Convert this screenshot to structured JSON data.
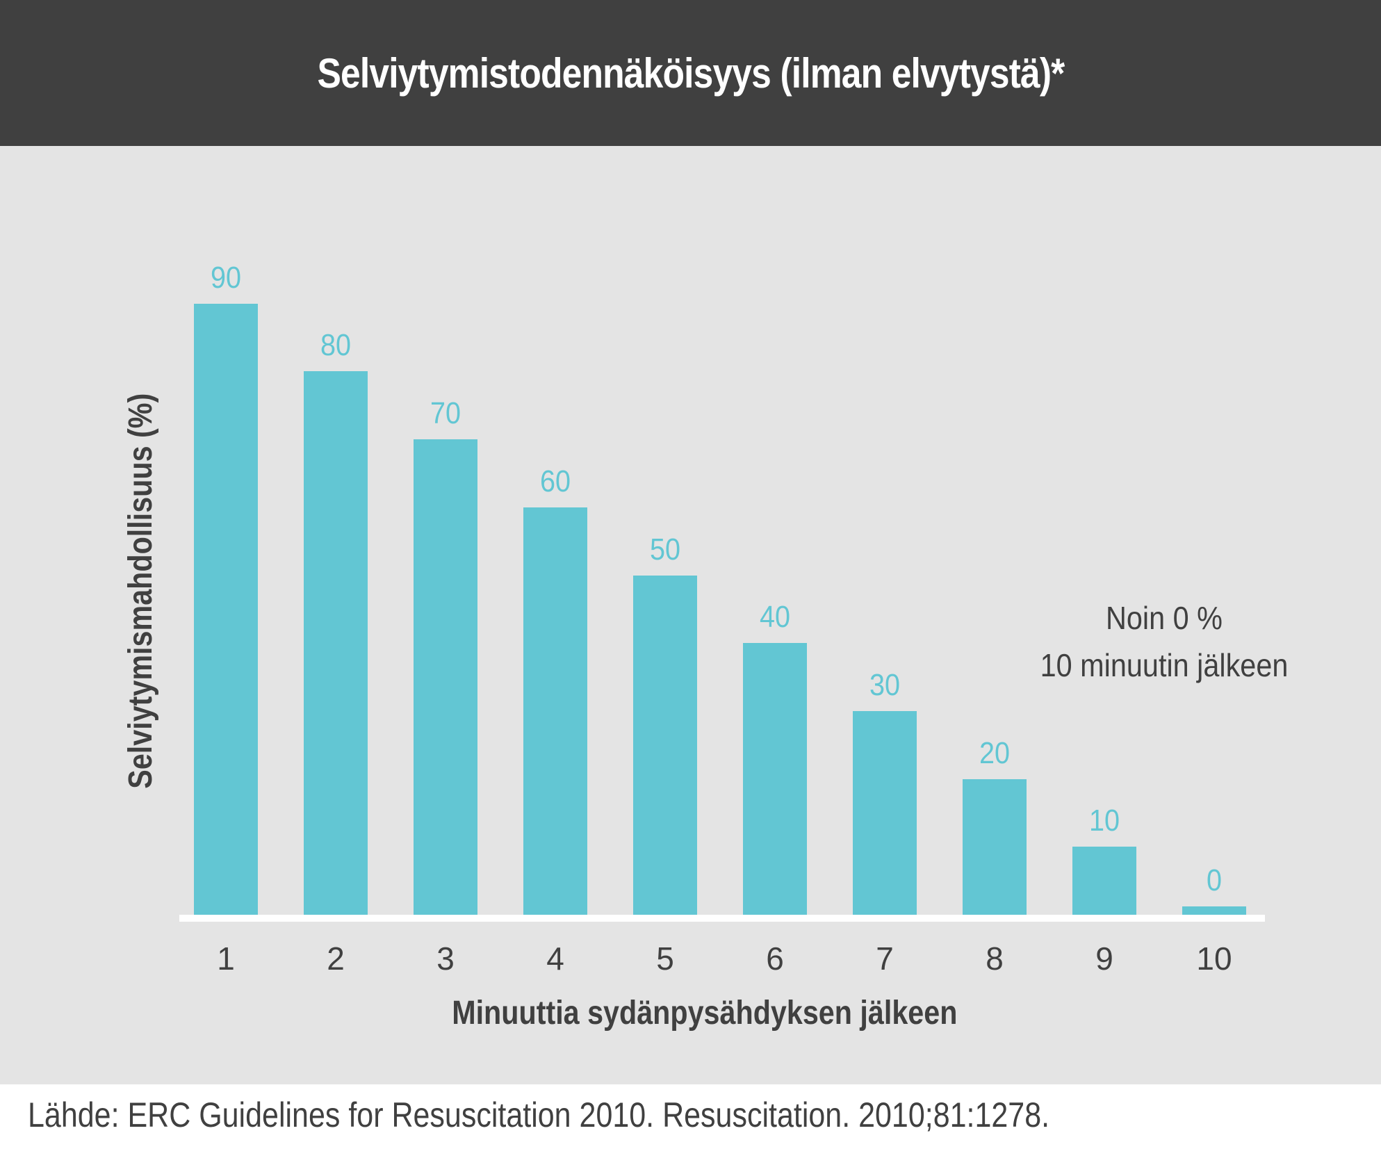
{
  "header": {
    "title": "Selviytymistodennäköisyys (ilman elvytystä)*"
  },
  "annotation": {
    "line1": "Noin 0 %",
    "line2": "10 minuutin jälkeen"
  },
  "footer": {
    "source": "Lähde: ERC Guidelines for Resuscitation 2010. Resuscitation. 2010;81:1278."
  },
  "colors": {
    "header_bg": "#404040",
    "plot_bg": "#e4e4e4",
    "bar": "#62c6d3",
    "text": "#404040",
    "axis_line": "#ffffff"
  },
  "chart_data": {
    "type": "bar",
    "title": "Selviytymistodennäköisyys (ilman elvytystä)*",
    "xlabel": "Minuuttia sydänpysähdyksen jälkeen",
    "ylabel": "Selviytymismahdollisuus (%)",
    "categories": [
      "1",
      "2",
      "3",
      "4",
      "5",
      "6",
      "7",
      "8",
      "9",
      "10"
    ],
    "values": [
      90,
      80,
      70,
      60,
      50,
      40,
      30,
      20,
      10,
      0
    ],
    "value_labels": [
      "90",
      "80",
      "70",
      "60",
      "50",
      "40",
      "30",
      "20",
      "10",
      "0"
    ],
    "ylim": [
      0,
      100
    ],
    "grid": false,
    "legend": null,
    "annotations": [
      "Noin 0 % 10 minuutin jälkeen"
    ],
    "source": "Lähde: ERC Guidelines for Resuscitation 2010. Resuscitation. 2010;81:1278."
  }
}
